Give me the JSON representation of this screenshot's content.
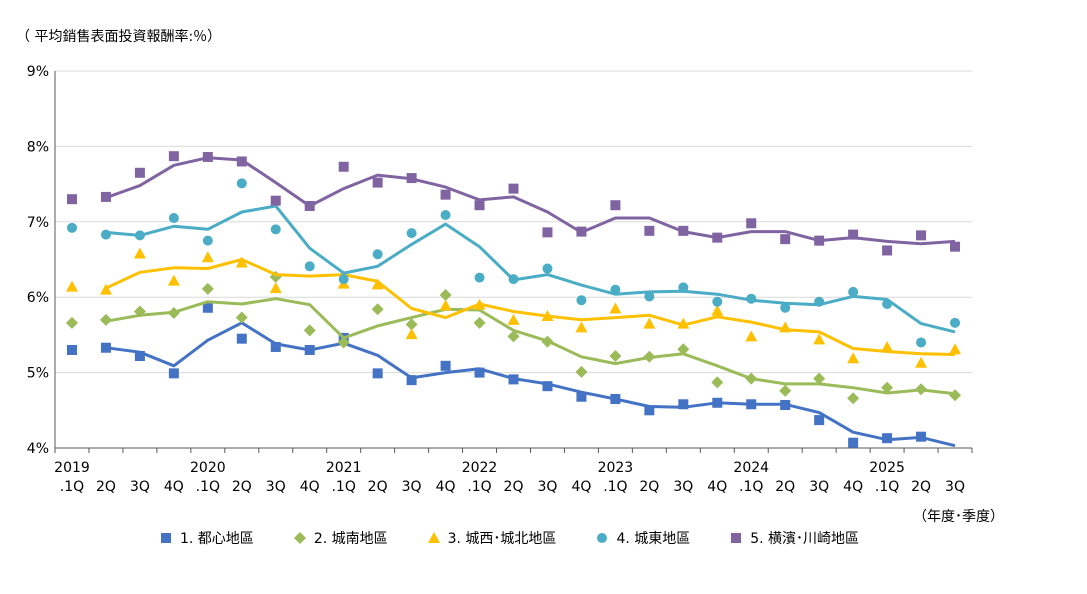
{
  "chart_data": {
    "type": "line",
    "ylabel": "（ 平均銷售表面投資報酬率:％）",
    "xunit_label": "（年度･季度）",
    "ylim": [
      4,
      9
    ],
    "yticks": [
      "4%",
      "5%",
      "6%",
      "7%",
      "8%",
      "9%"
    ],
    "year_labels": [
      "2019",
      "2020",
      "2021",
      "2022",
      "2023",
      "2024",
      "2025"
    ],
    "categories": [
      ".1Q",
      "2Q",
      "3Q",
      "4Q",
      ".1Q",
      "2Q",
      "3Q",
      "4Q",
      ".1Q",
      "2Q",
      "3Q",
      "4Q",
      ".1Q",
      "2Q",
      "3Q",
      "4Q",
      ".1Q",
      "2Q",
      "3Q",
      "4Q",
      ".1Q",
      "2Q",
      "3Q",
      "4Q",
      ".1Q",
      "2Q",
      "3Q"
    ],
    "grid": "horizontal",
    "legend_position": "bottom",
    "series": [
      {
        "name": "1. 都心地區",
        "color": "#4472C4",
        "marker": "square",
        "points": [
          5.3,
          5.33,
          5.22,
          4.99,
          5.86,
          5.45,
          5.34,
          5.3,
          5.46,
          4.99,
          4.9,
          5.09,
          5.0,
          4.91,
          4.82,
          4.68,
          4.65,
          4.5,
          4.58,
          4.6,
          4.58,
          4.57,
          4.37,
          4.07,
          4.13,
          4.15,
          null
        ],
        "trend": [
          null,
          5.33,
          5.27,
          5.09,
          5.43,
          5.66,
          5.38,
          5.3,
          5.39,
          5.23,
          4.93,
          5.0,
          5.05,
          4.92,
          4.85,
          4.74,
          4.65,
          4.55,
          4.54,
          4.6,
          4.58,
          4.58,
          4.47,
          4.21,
          4.11,
          4.14,
          4.03
        ]
      },
      {
        "name": "2. 城南地區",
        "color": "#9BBB59",
        "marker": "diamond",
        "points": [
          5.66,
          5.7,
          5.81,
          5.79,
          6.11,
          5.73,
          6.27,
          5.56,
          5.4,
          5.84,
          5.64,
          6.03,
          5.66,
          5.48,
          5.41,
          5.01,
          5.22,
          5.21,
          5.31,
          4.87,
          4.92,
          4.76,
          4.92,
          4.66,
          4.8,
          4.78,
          4.7
        ],
        "trend": [
          null,
          5.68,
          5.76,
          5.8,
          5.94,
          5.91,
          5.98,
          5.9,
          5.46,
          5.62,
          5.73,
          5.84,
          5.83,
          5.56,
          5.42,
          5.21,
          5.12,
          5.2,
          5.25,
          5.09,
          4.92,
          4.85,
          4.85,
          4.8,
          4.73,
          4.77,
          4.72
        ]
      },
      {
        "name": "3. 城西･城北地區",
        "color": "#FFC000",
        "marker": "triangle",
        "points": [
          6.14,
          6.1,
          6.58,
          6.22,
          6.53,
          6.46,
          6.12,
          null,
          6.18,
          6.17,
          5.51,
          5.89,
          5.9,
          5.7,
          5.75,
          5.6,
          5.85,
          5.65,
          5.65,
          5.82,
          5.48,
          5.6,
          5.44,
          5.19,
          5.34,
          5.13,
          5.31
        ],
        "trend": [
          null,
          6.12,
          6.33,
          6.39,
          6.38,
          6.5,
          6.3,
          6.28,
          6.3,
          6.21,
          5.85,
          5.73,
          5.91,
          5.81,
          5.75,
          5.7,
          5.73,
          5.76,
          5.63,
          5.74,
          5.67,
          5.57,
          5.54,
          5.32,
          5.28,
          5.25,
          5.24
        ]
      },
      {
        "name": "4. 城東地區",
        "color": "#4BACC6",
        "marker": "circle",
        "points": [
          6.92,
          6.83,
          6.82,
          7.05,
          6.75,
          7.51,
          6.9,
          6.41,
          6.24,
          6.57,
          6.85,
          7.09,
          6.26,
          6.24,
          6.38,
          5.96,
          6.1,
          6.01,
          6.13,
          5.94,
          5.98,
          5.86,
          5.94,
          6.07,
          5.91,
          5.4,
          5.66
        ],
        "trend": [
          null,
          6.86,
          6.82,
          6.94,
          6.9,
          7.13,
          7.21,
          6.65,
          6.32,
          6.41,
          6.7,
          6.97,
          6.67,
          6.23,
          6.3,
          6.16,
          6.04,
          6.07,
          6.08,
          6.04,
          5.96,
          5.92,
          5.9,
          6.01,
          5.97,
          5.65,
          5.54
        ]
      },
      {
        "name": "5. 横濱･川崎地區",
        "color": "#8064A2",
        "marker": "square",
        "points": [
          7.3,
          7.33,
          7.65,
          7.87,
          7.86,
          7.8,
          7.28,
          7.21,
          7.73,
          7.52,
          7.58,
          7.36,
          7.22,
          7.44,
          6.86,
          6.87,
          7.22,
          6.88,
          6.88,
          6.79,
          6.98,
          6.77,
          6.75,
          6.83,
          6.62,
          6.82,
          6.67
        ],
        "trend": [
          null,
          7.32,
          7.48,
          7.75,
          7.85,
          7.82,
          7.52,
          7.21,
          7.44,
          7.62,
          7.57,
          7.46,
          7.29,
          7.33,
          7.13,
          6.86,
          7.05,
          7.05,
          6.87,
          6.79,
          6.87,
          6.87,
          6.75,
          6.79,
          6.74,
          6.71,
          6.74
        ]
      }
    ]
  }
}
